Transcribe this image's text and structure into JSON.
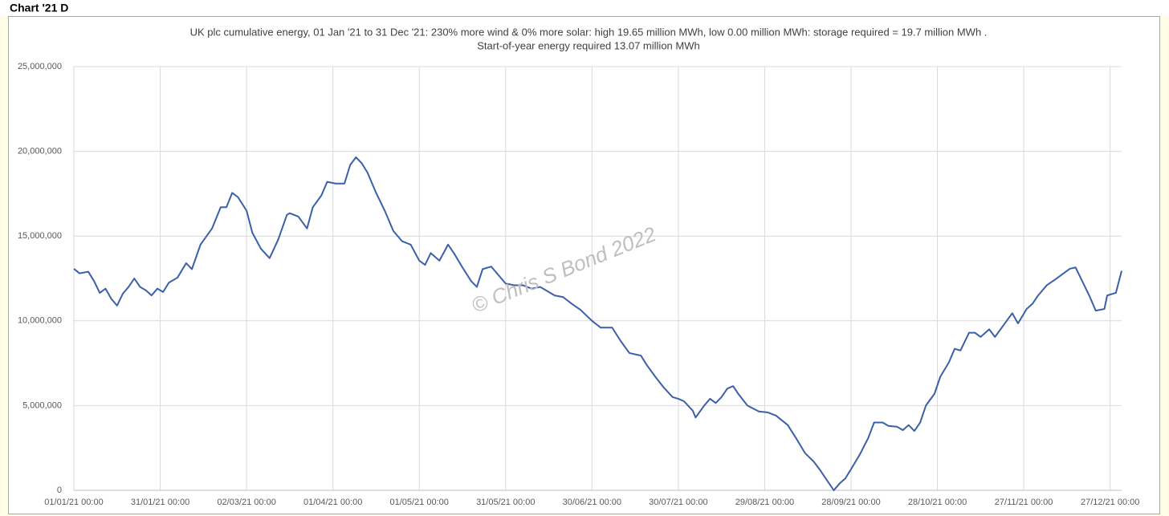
{
  "header": "Chart '21 D",
  "chart_data": {
    "type": "line",
    "title": "UK plc cumulative energy, 01 Jan '21 to 31 Dec '21: 230% more wind & 0% more solar: high 19.65 million MWh, low 0.00 million MWh: storage required = 19.7 million MWh .",
    "subtitle": "Start-of-year energy required 13.07 million MWh",
    "annotation": "© Chris S Bond  2022",
    "grid": true,
    "x": [
      "2021-01-01",
      "2021-01-03",
      "2021-01-06",
      "2021-01-08",
      "2021-01-10",
      "2021-01-12",
      "2021-01-14",
      "2021-01-16",
      "2021-01-18",
      "2021-01-20",
      "2021-01-22",
      "2021-01-24",
      "2021-01-26",
      "2021-01-28",
      "2021-01-30",
      "2021-02-01",
      "2021-02-03",
      "2021-02-06",
      "2021-02-09",
      "2021-02-11",
      "2021-02-14",
      "2021-02-18",
      "2021-02-21",
      "2021-02-23",
      "2021-02-25",
      "2021-02-27",
      "2021-03-02",
      "2021-03-04",
      "2021-03-07",
      "2021-03-10",
      "2021-03-13",
      "2021-03-16",
      "2021-03-17",
      "2021-03-20",
      "2021-03-23",
      "2021-03-25",
      "2021-03-28",
      "2021-03-30",
      "2021-04-02",
      "2021-04-05",
      "2021-04-07",
      "2021-04-09",
      "2021-04-11",
      "2021-04-13",
      "2021-04-16",
      "2021-04-19",
      "2021-04-22",
      "2021-04-25",
      "2021-04-28",
      "2021-05-01",
      "2021-05-03",
      "2021-05-05",
      "2021-05-08",
      "2021-05-11",
      "2021-05-13",
      "2021-05-16",
      "2021-05-19",
      "2021-05-21",
      "2021-05-23",
      "2021-05-26",
      "2021-05-29",
      "2021-05-31",
      "2021-06-03",
      "2021-06-06",
      "2021-06-09",
      "2021-06-12",
      "2021-06-14",
      "2021-06-17",
      "2021-06-20",
      "2021-06-23",
      "2021-06-26",
      "2021-06-30",
      "2021-07-03",
      "2021-07-07",
      "2021-07-10",
      "2021-07-13",
      "2021-07-17",
      "2021-07-19",
      "2021-07-22",
      "2021-07-25",
      "2021-07-28",
      "2021-07-30",
      "2021-08-01",
      "2021-08-04",
      "2021-08-05",
      "2021-08-08",
      "2021-08-10",
      "2021-08-12",
      "2021-08-14",
      "2021-08-16",
      "2021-08-18",
      "2021-08-20",
      "2021-08-23",
      "2021-08-27",
      "2021-08-30",
      "2021-09-02",
      "2021-09-06",
      "2021-09-09",
      "2021-09-12",
      "2021-09-15",
      "2021-09-17",
      "2021-09-20",
      "2021-09-22",
      "2021-09-24",
      "2021-09-26",
      "2021-09-28",
      "2021-10-01",
      "2021-10-04",
      "2021-10-06",
      "2021-10-09",
      "2021-10-11",
      "2021-10-14",
      "2021-10-16",
      "2021-10-18",
      "2021-10-20",
      "2021-10-22",
      "2021-10-24",
      "2021-10-27",
      "2021-10-29",
      "2021-11-01",
      "2021-11-03",
      "2021-11-05",
      "2021-11-08",
      "2021-11-10",
      "2021-11-12",
      "2021-11-15",
      "2021-11-17",
      "2021-11-20",
      "2021-11-23",
      "2021-11-25",
      "2021-11-28",
      "2021-11-30",
      "2021-12-02",
      "2021-12-05",
      "2021-12-08",
      "2021-12-10",
      "2021-12-13",
      "2021-12-15",
      "2021-12-17",
      "2021-12-20",
      "2021-12-22",
      "2021-12-25",
      "2021-12-26",
      "2021-12-29",
      "2021-12-31"
    ],
    "series": [
      {
        "color": "#3a60a8",
        "values": [
          13070000,
          12800000,
          12900000,
          12350000,
          11650000,
          11900000,
          11300000,
          10900000,
          11600000,
          12000000,
          12500000,
          12000000,
          11800000,
          11500000,
          11900000,
          11700000,
          12250000,
          12550000,
          13400000,
          13050000,
          14500000,
          15450000,
          16700000,
          16700000,
          17550000,
          17300000,
          16500000,
          15200000,
          14250000,
          13700000,
          14800000,
          16250000,
          16350000,
          16150000,
          15450000,
          16700000,
          17400000,
          18200000,
          18100000,
          18100000,
          19200000,
          19650000,
          19300000,
          18750000,
          17550000,
          16500000,
          15300000,
          14700000,
          14500000,
          13550000,
          13300000,
          14000000,
          13550000,
          14500000,
          14000000,
          13150000,
          12350000,
          12000000,
          13050000,
          13200000,
          12600000,
          12200000,
          12100000,
          12100000,
          11900000,
          12000000,
          11800000,
          11500000,
          11400000,
          11000000,
          10650000,
          10000000,
          9600000,
          9600000,
          8800000,
          8100000,
          7950000,
          7400000,
          6700000,
          6050000,
          5500000,
          5400000,
          5250000,
          4700000,
          4300000,
          5000000,
          5400000,
          5150000,
          5500000,
          6000000,
          6150000,
          5650000,
          5000000,
          4650000,
          4600000,
          4400000,
          3850000,
          3050000,
          2200000,
          1700000,
          1250000,
          500000,
          0,
          400000,
          700000,
          1250000,
          2100000,
          3100000,
          4000000,
          4000000,
          3800000,
          3750000,
          3550000,
          3850000,
          3500000,
          4000000,
          5000000,
          5700000,
          6700000,
          7550000,
          8350000,
          8250000,
          9300000,
          9300000,
          9050000,
          9500000,
          9050000,
          9750000,
          10450000,
          9850000,
          10700000,
          11000000,
          11500000,
          12100000,
          12450000,
          12700000,
          13070000,
          13150000,
          12450000,
          11400000,
          10600000,
          10700000,
          11500000,
          11650000,
          12950000
        ]
      }
    ],
    "xlim": [
      "2021-01-01",
      "2021-12-31"
    ],
    "xticks": [
      {
        "value": "2021-01-01",
        "label": "01/01/21 00:00"
      },
      {
        "value": "2021-01-31",
        "label": "31/01/21 00:00"
      },
      {
        "value": "2021-03-02",
        "label": "02/03/21 00:00"
      },
      {
        "value": "2021-04-01",
        "label": "01/04/21 00:00"
      },
      {
        "value": "2021-05-01",
        "label": "01/05/21 00:00"
      },
      {
        "value": "2021-05-31",
        "label": "31/05/21 00:00"
      },
      {
        "value": "2021-06-30",
        "label": "30/06/21 00:00"
      },
      {
        "value": "2021-07-30",
        "label": "30/07/21 00:00"
      },
      {
        "value": "2021-08-29",
        "label": "29/08/21 00:00"
      },
      {
        "value": "2021-09-28",
        "label": "28/09/21 00:00"
      },
      {
        "value": "2021-10-28",
        "label": "28/10/21 00:00"
      },
      {
        "value": "2021-11-27",
        "label": "27/11/21 00:00"
      },
      {
        "value": "2021-12-27",
        "label": "27/12/21 00:00"
      }
    ],
    "ylim": [
      0,
      25000000
    ],
    "yticks": [
      0,
      {
        "value": 5000000,
        "label": "5,000,000"
      },
      {
        "value": 10000000,
        "label": "10,000,000"
      },
      {
        "value": 15000000,
        "label": "15,000,000"
      },
      {
        "value": 20000000,
        "label": "20,000,000"
      },
      {
        "value": 25000000,
        "label": "25,000,000"
      }
    ]
  }
}
